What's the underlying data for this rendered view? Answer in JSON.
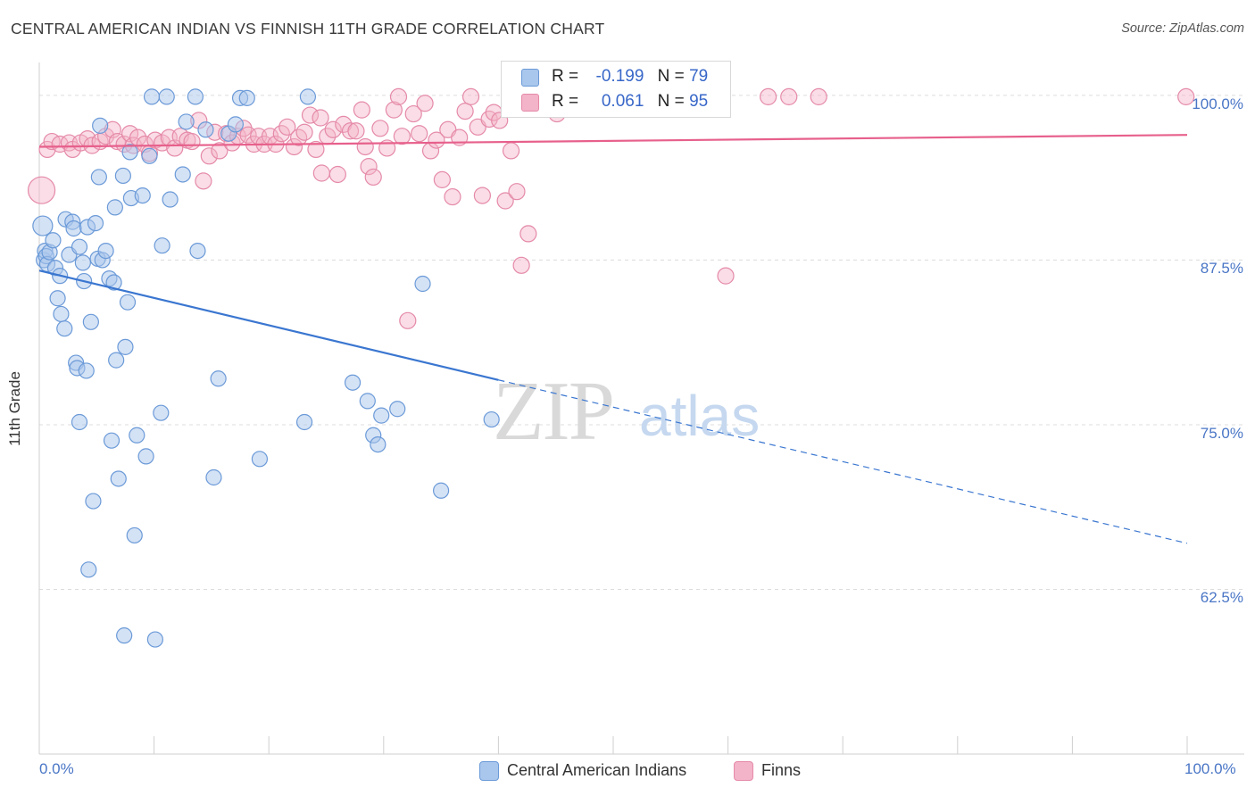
{
  "title": "CENTRAL AMERICAN INDIAN VS FINNISH 11TH GRADE CORRELATION CHART",
  "source": "Source: ZipAtlas.com",
  "watermark": {
    "zip": "ZIP",
    "atlas": "atlas"
  },
  "colors": {
    "blue_fill": "#a9c6ec",
    "blue_stroke": "#6b9ad8",
    "blue_line": "#3a76d0",
    "pink_fill": "#f3b3c8",
    "pink_stroke": "#e58aa8",
    "pink_line": "#e7608c",
    "tick_text": "#4a76c6",
    "grid": "#dcdcdc"
  },
  "legend": {
    "rows": [
      {
        "series": "Central American Indians",
        "r_label": "R =",
        "r_value": "-0.199",
        "n_label": "N =",
        "n_value": "79"
      },
      {
        "series": "Finns",
        "r_label": "R =",
        "r_value": "0.061",
        "n_label": "N =",
        "n_value": "95"
      }
    ]
  },
  "chart_data": {
    "type": "scatter",
    "title": "CENTRAL AMERICAN INDIAN VS FINNISH 11TH GRADE CORRELATION CHART",
    "xlabel": "",
    "ylabel": "11th Grade",
    "xlim": [
      0,
      100
    ],
    "ylim": [
      50,
      102.5
    ],
    "x_tick_labels": [
      "0.0%",
      "100.0%"
    ],
    "y_ticks": [
      62.5,
      75.0,
      87.5,
      100.0
    ],
    "y_tick_labels": [
      "62.5%",
      "75.0%",
      "87.5%",
      "100.0%"
    ],
    "grid": true,
    "legend_position": "bottom",
    "series": [
      {
        "name": "Central American Indians",
        "r": -0.199,
        "n": 79,
        "trend": {
          "x": [
            0,
            40,
            100
          ],
          "y": [
            86.7,
            78.4,
            66.0
          ],
          "dashed_after_x": 40
        },
        "points": [
          [
            0.3,
            90.1
          ],
          [
            0.4,
            87.5
          ],
          [
            0.5,
            88.2
          ],
          [
            0.6,
            87.8
          ],
          [
            0.7,
            87.2
          ],
          [
            0.9,
            88.1
          ],
          [
            1.2,
            89.0
          ],
          [
            1.4,
            86.9
          ],
          [
            1.6,
            84.6
          ],
          [
            1.8,
            86.3
          ],
          [
            1.9,
            83.4
          ],
          [
            2.2,
            82.3
          ],
          [
            2.3,
            90.6
          ],
          [
            2.6,
            87.9
          ],
          [
            2.9,
            90.4
          ],
          [
            3.0,
            89.9
          ],
          [
            3.2,
            79.7
          ],
          [
            3.3,
            79.3
          ],
          [
            3.5,
            88.5
          ],
          [
            3.5,
            75.2
          ],
          [
            3.8,
            87.3
          ],
          [
            3.9,
            85.9
          ],
          [
            4.1,
            79.1
          ],
          [
            4.2,
            90.0
          ],
          [
            4.3,
            64.0
          ],
          [
            4.5,
            82.8
          ],
          [
            4.7,
            69.2
          ],
          [
            4.9,
            90.3
          ],
          [
            5.1,
            87.6
          ],
          [
            5.2,
            93.8
          ],
          [
            5.3,
            97.7
          ],
          [
            5.5,
            87.5
          ],
          [
            5.8,
            88.2
          ],
          [
            6.1,
            86.1
          ],
          [
            6.3,
            73.8
          ],
          [
            6.5,
            85.8
          ],
          [
            6.6,
            91.5
          ],
          [
            6.7,
            79.9
          ],
          [
            6.9,
            70.9
          ],
          [
            7.3,
            93.9
          ],
          [
            7.4,
            59.0
          ],
          [
            7.5,
            80.9
          ],
          [
            7.7,
            84.3
          ],
          [
            7.9,
            95.7
          ],
          [
            8.0,
            92.2
          ],
          [
            8.3,
            66.6
          ],
          [
            8.5,
            74.2
          ],
          [
            9.0,
            92.4
          ],
          [
            9.3,
            72.6
          ],
          [
            9.6,
            95.4
          ],
          [
            9.8,
            99.9
          ],
          [
            10.1,
            58.7
          ],
          [
            10.6,
            75.9
          ],
          [
            10.7,
            88.6
          ],
          [
            11.1,
            99.9
          ],
          [
            11.4,
            92.1
          ],
          [
            12.5,
            94.0
          ],
          [
            12.8,
            98.0
          ],
          [
            13.6,
            99.9
          ],
          [
            13.8,
            88.2
          ],
          [
            14.5,
            97.4
          ],
          [
            15.2,
            71.0
          ],
          [
            15.6,
            78.5
          ],
          [
            16.5,
            97.1
          ],
          [
            17.1,
            97.8
          ],
          [
            17.5,
            99.8
          ],
          [
            18.1,
            99.8
          ],
          [
            19.2,
            72.4
          ],
          [
            23.1,
            75.2
          ],
          [
            23.4,
            99.9
          ],
          [
            27.3,
            78.2
          ],
          [
            28.6,
            76.8
          ],
          [
            29.1,
            74.2
          ],
          [
            29.5,
            73.5
          ],
          [
            29.8,
            75.7
          ],
          [
            31.2,
            76.2
          ],
          [
            33.4,
            85.7
          ],
          [
            35.0,
            70.0
          ],
          [
            39.4,
            75.4
          ]
        ]
      },
      {
        "name": "Finns",
        "r": 0.061,
        "n": 95,
        "trend": {
          "x": [
            0,
            100
          ],
          "y": [
            96.1,
            97.0
          ]
        },
        "points": [
          [
            0.2,
            92.8
          ],
          [
            0.7,
            95.9
          ],
          [
            1.1,
            96.5
          ],
          [
            1.8,
            96.3
          ],
          [
            2.6,
            96.4
          ],
          [
            2.9,
            95.9
          ],
          [
            3.6,
            96.4
          ],
          [
            4.2,
            96.7
          ],
          [
            4.6,
            96.2
          ],
          [
            5.3,
            96.5
          ],
          [
            5.8,
            96.9
          ],
          [
            6.4,
            97.4
          ],
          [
            6.8,
            96.5
          ],
          [
            7.4,
            96.3
          ],
          [
            7.9,
            97.1
          ],
          [
            8.2,
            96.2
          ],
          [
            8.6,
            96.8
          ],
          [
            9.2,
            96.3
          ],
          [
            9.6,
            95.6
          ],
          [
            10.1,
            96.6
          ],
          [
            10.7,
            96.4
          ],
          [
            11.3,
            96.8
          ],
          [
            11.8,
            96.0
          ],
          [
            12.3,
            96.9
          ],
          [
            12.9,
            96.6
          ],
          [
            13.3,
            96.5
          ],
          [
            13.9,
            98.1
          ],
          [
            14.3,
            93.5
          ],
          [
            14.8,
            95.4
          ],
          [
            15.3,
            97.2
          ],
          [
            15.7,
            95.8
          ],
          [
            16.3,
            97.1
          ],
          [
            16.8,
            96.4
          ],
          [
            17.3,
            96.9
          ],
          [
            17.8,
            97.5
          ],
          [
            18.2,
            97.0
          ],
          [
            18.7,
            96.3
          ],
          [
            19.1,
            96.9
          ],
          [
            19.6,
            96.3
          ],
          [
            20.1,
            96.9
          ],
          [
            20.6,
            96.3
          ],
          [
            21.1,
            97.1
          ],
          [
            21.6,
            97.6
          ],
          [
            22.2,
            96.1
          ],
          [
            22.6,
            96.8
          ],
          [
            23.1,
            97.2
          ],
          [
            23.6,
            98.5
          ],
          [
            24.1,
            95.9
          ],
          [
            24.5,
            98.3
          ],
          [
            24.6,
            94.1
          ],
          [
            25.1,
            96.9
          ],
          [
            25.6,
            97.4
          ],
          [
            26.0,
            94.0
          ],
          [
            26.5,
            97.8
          ],
          [
            27.1,
            97.3
          ],
          [
            27.6,
            97.3
          ],
          [
            28.1,
            98.9
          ],
          [
            28.4,
            96.1
          ],
          [
            28.7,
            94.6
          ],
          [
            29.1,
            93.8
          ],
          [
            29.7,
            97.5
          ],
          [
            30.3,
            96.0
          ],
          [
            30.9,
            98.9
          ],
          [
            31.3,
            99.9
          ],
          [
            31.6,
            96.9
          ],
          [
            32.1,
            82.9
          ],
          [
            32.6,
            98.6
          ],
          [
            33.1,
            97.1
          ],
          [
            33.6,
            99.4
          ],
          [
            34.1,
            95.8
          ],
          [
            34.6,
            96.6
          ],
          [
            35.1,
            93.6
          ],
          [
            35.6,
            97.4
          ],
          [
            36.0,
            92.3
          ],
          [
            36.6,
            96.8
          ],
          [
            37.1,
            98.8
          ],
          [
            37.6,
            99.9
          ],
          [
            38.2,
            97.6
          ],
          [
            38.6,
            92.4
          ],
          [
            39.2,
            98.2
          ],
          [
            39.6,
            98.7
          ],
          [
            40.1,
            98.1
          ],
          [
            40.6,
            92.0
          ],
          [
            41.1,
            95.8
          ],
          [
            41.6,
            92.7
          ],
          [
            42.0,
            87.1
          ],
          [
            42.6,
            89.5
          ],
          [
            45.1,
            98.6
          ],
          [
            46.2,
            99.9
          ],
          [
            48.2,
            99.9
          ],
          [
            59.8,
            86.3
          ],
          [
            63.5,
            99.9
          ],
          [
            65.3,
            99.9
          ],
          [
            67.9,
            99.9
          ],
          [
            99.9,
            99.9
          ]
        ]
      }
    ]
  }
}
